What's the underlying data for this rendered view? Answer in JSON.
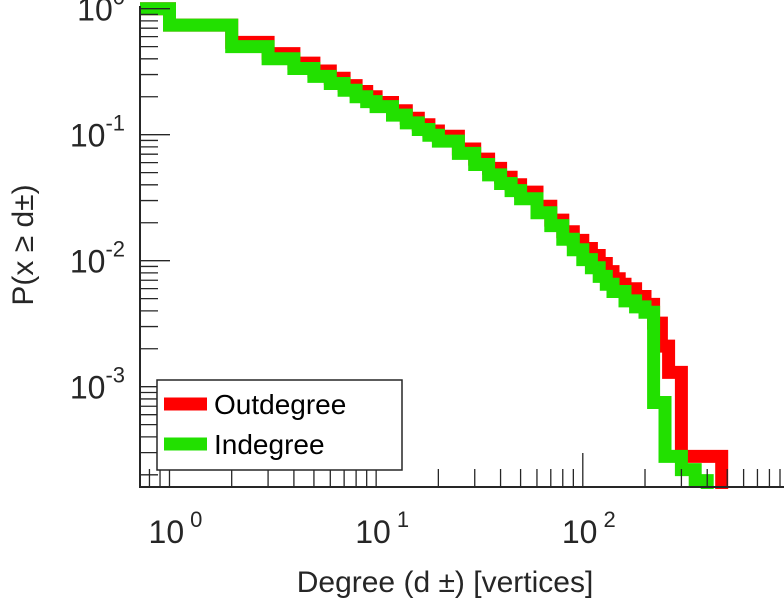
{
  "chart_data": {
    "type": "line",
    "title": "",
    "xlabel": "Degree (d ±) [vertices]",
    "ylabel": "P(x ≥ d±)",
    "x_scale": "log",
    "y_scale": "log",
    "xlim": [
      0.72,
      900
    ],
    "ylim": [
      0.00016,
      1.05
    ],
    "grid": false,
    "legend_position": "bottom-left",
    "x_ticks": [
      {
        "base": "10",
        "exp": "0",
        "value": 1
      },
      {
        "base": "10",
        "exp": "1",
        "value": 10
      },
      {
        "base": "10",
        "exp": "2",
        "value": 100
      }
    ],
    "y_ticks": [
      {
        "base": "10",
        "exp": "0",
        "value": 1
      },
      {
        "base": "10",
        "exp": "-1",
        "value": 0.1
      },
      {
        "base": "10",
        "exp": "-2",
        "value": 0.01
      },
      {
        "base": "10",
        "exp": "-3",
        "value": 0.001
      }
    ],
    "series": [
      {
        "name": "Outdegree",
        "color": "#ff0000",
        "x": [
          0.72,
          1,
          2,
          3,
          4,
          5,
          6,
          7,
          8,
          9,
          10,
          12,
          14,
          16,
          18,
          20,
          25,
          30,
          35,
          40,
          45,
          50,
          60,
          70,
          80,
          90,
          100,
          110,
          120,
          130,
          140,
          150,
          160,
          180,
          200,
          220,
          240,
          260,
          300,
          400,
          470
        ],
        "y": [
          1.0,
          0.74,
          0.54,
          0.44,
          0.37,
          0.32,
          0.28,
          0.245,
          0.22,
          0.2,
          0.18,
          0.155,
          0.135,
          0.12,
          0.107,
          0.097,
          0.077,
          0.064,
          0.054,
          0.046,
          0.04,
          0.035,
          0.027,
          0.021,
          0.017,
          0.0145,
          0.0125,
          0.011,
          0.0095,
          0.0082,
          0.0072,
          0.0065,
          0.006,
          0.0052,
          0.0045,
          0.0032,
          0.0021,
          0.0013,
          0.00028,
          0.00028,
          0.00022
        ]
      },
      {
        "name": "Indegree",
        "color": "#22e000",
        "x": [
          0.72,
          1,
          2,
          3,
          4,
          5,
          6,
          7,
          8,
          9,
          10,
          12,
          14,
          16,
          18,
          20,
          25,
          30,
          35,
          40,
          45,
          50,
          60,
          70,
          80,
          90,
          100,
          110,
          120,
          130,
          140,
          160,
          180,
          200,
          220,
          250,
          300,
          350,
          400
        ],
        "y": [
          1.0,
          0.74,
          0.5,
          0.4,
          0.335,
          0.29,
          0.255,
          0.225,
          0.2,
          0.183,
          0.167,
          0.143,
          0.124,
          0.11,
          0.099,
          0.089,
          0.071,
          0.058,
          0.048,
          0.041,
          0.036,
          0.031,
          0.024,
          0.019,
          0.0148,
          0.0122,
          0.0102,
          0.0088,
          0.0075,
          0.0065,
          0.0057,
          0.0048,
          0.0043,
          0.0039,
          0.00075,
          0.00028,
          0.00022,
          0.00018,
          0.00016
        ]
      }
    ]
  }
}
